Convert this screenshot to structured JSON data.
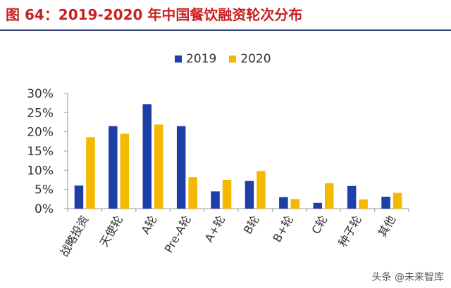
{
  "title": "图 64：2019-2020 年中国餐饮融资轮次分布",
  "watermark": "头条 @未来智库",
  "colors": {
    "title": "#cc1f1f",
    "series_2019": "#1f3fa8",
    "series_2020": "#f5b800",
    "rule": "#2e3e6e"
  },
  "chart_data": {
    "type": "bar",
    "categories": [
      "战略投资",
      "天使轮",
      "A轮",
      "Pre-A轮",
      "A+轮",
      "B轮",
      "B+轮",
      "C轮",
      "种子轮",
      "其他"
    ],
    "series": [
      {
        "name": "2019",
        "values": [
          6.0,
          21.5,
          27.2,
          21.5,
          4.5,
          7.2,
          3.0,
          1.5,
          5.9,
          3.1
        ]
      },
      {
        "name": "2020",
        "values": [
          18.6,
          19.5,
          21.9,
          8.2,
          7.5,
          9.8,
          2.5,
          6.6,
          2.4,
          4.1
        ]
      }
    ],
    "ylim": [
      0,
      30
    ],
    "yticks": [
      "0%",
      "5%",
      "10%",
      "15%",
      "20%",
      "25%",
      "30%"
    ],
    "ytick_values": [
      0,
      5,
      10,
      15,
      20,
      25,
      30
    ],
    "legend_position": "top-center",
    "grid": false
  }
}
